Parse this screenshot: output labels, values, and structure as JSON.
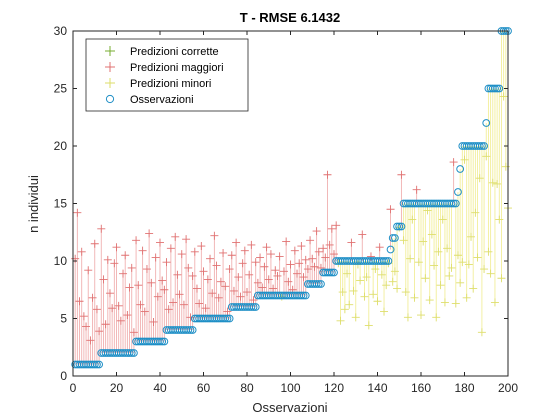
{
  "chart_data": {
    "type": "scatter",
    "title": "T - RMSE 6.1432",
    "xlabel": "Osservazioni",
    "ylabel": "n individui",
    "xlim": [
      0,
      200
    ],
    "ylim": [
      0,
      30
    ],
    "xticks": [
      "0",
      "20",
      "40",
      "60",
      "80",
      "100",
      "120",
      "140",
      "160",
      "180",
      "200"
    ],
    "yticks": [
      "0",
      "5",
      "10",
      "15",
      "20",
      "25",
      "30"
    ],
    "grid": false,
    "legend_position": "top-left",
    "legend": [
      {
        "label": "Predizioni corrette",
        "marker": "+",
        "color": "#77AC30"
      },
      {
        "label": "Predizioni maggiori",
        "marker": "+",
        "color": "#D95319"
      },
      {
        "label": "Predizioni minori",
        "marker": "+",
        "color": "#EDB120"
      },
      {
        "label": "Osservazioni",
        "marker": "o",
        "color": "#0072BD"
      }
    ],
    "colors": {
      "over_line": "#F0B0B0",
      "over_marker": "#E07070",
      "under_line": "#F2EE9A",
      "under_marker": "#DEDE6A",
      "correct_marker": "#77AC30",
      "observation": "#1F8FC6"
    },
    "observations": [
      1,
      1,
      1,
      1,
      1,
      1,
      1,
      1,
      1,
      1,
      1,
      1,
      2,
      2,
      2,
      2,
      2,
      2,
      2,
      2,
      2,
      2,
      2,
      2,
      2,
      2,
      2,
      2,
      3,
      3,
      3,
      3,
      3,
      3,
      3,
      3,
      3,
      3,
      3,
      3,
      3,
      3,
      4,
      4,
      4,
      4,
      4,
      4,
      4,
      4,
      4,
      4,
      4,
      4,
      4,
      5,
      5,
      5,
      5,
      5,
      5,
      5,
      5,
      5,
      5,
      5,
      5,
      5,
      5,
      5,
      5,
      5,
      6,
      6,
      6,
      6,
      6,
      6,
      6,
      6,
      6,
      6,
      6,
      6,
      7,
      7,
      7,
      7,
      7,
      7,
      7,
      7,
      7,
      7,
      7,
      7,
      7,
      7,
      7,
      7,
      7,
      7,
      7,
      7,
      7,
      7,
      7,
      8,
      8,
      8,
      8,
      8,
      8,
      8,
      9,
      9,
      9,
      9,
      9,
      9,
      10,
      10,
      10,
      10,
      10,
      10,
      10,
      10,
      10,
      10,
      10,
      10,
      10,
      10,
      10,
      10,
      10,
      10,
      10,
      10,
      10,
      10,
      10,
      10,
      10,
      11,
      12,
      12,
      13,
      13,
      13,
      15,
      15,
      15,
      15,
      15,
      15,
      15,
      15,
      15,
      15,
      15,
      15,
      15,
      15,
      15,
      15,
      15,
      15,
      15,
      15,
      15,
      15,
      15,
      15,
      15,
      16,
      18,
      20,
      20,
      20,
      20,
      20,
      20,
      20,
      20,
      20,
      20,
      20,
      22,
      25,
      25,
      25,
      25,
      25,
      25,
      30,
      30,
      30,
      30
    ],
    "predictions": [
      10.2,
      14.2,
      6.5,
      10.8,
      5.2,
      4.3,
      9.2,
      3.1,
      6.8,
      11.5,
      5.8,
      3.9,
      12.8,
      8.4,
      4.5,
      10.1,
      7.2,
      5.9,
      9.8,
      11.2,
      6.1,
      4.8,
      8.9,
      10.5,
      5.3,
      7.7,
      9.4,
      3.8,
      11.8,
      7.9,
      6.2,
      10.9,
      5.6,
      9.3,
      12.4,
      8.1,
      4.7,
      10.3,
      6.9,
      11.6,
      8.3,
      7.5,
      9.9,
      5.8,
      11.1,
      6.4,
      12.1,
      8.8,
      7.1,
      10.6,
      6.2,
      11.9,
      9.4,
      5.1,
      8.7,
      10.8,
      7.6,
      6.3,
      11.3,
      9.1,
      5.9,
      8.4,
      10.2,
      7.2,
      12.2,
      9.6,
      6.8,
      8.2,
      10.7,
      7.8,
      5.6,
      9.3,
      10.5,
      7.4,
      11.6,
      8.6,
      6.9,
      9.8,
      10.9,
      7.3,
      8.8,
      11.4,
      6.6,
      9.9,
      8.1,
      10.3,
      7.7,
      9.5,
      11.2,
      8.4,
      10.6,
      7.6,
      9.2,
      8.7,
      10.4,
      6.9,
      9.1,
      11.7,
      8.2,
      9.7,
      7.5,
      10.9,
      8.9,
      9.8,
      11.3,
      8.6,
      10.1,
      9.3,
      11.8,
      10.2,
      9.5,
      12.6,
      10.8,
      9.4,
      11.1,
      10.3,
      17.5,
      11.4,
      12.8,
      10.6,
      13.1,
      9.8,
      4.8,
      7.3,
      5.8,
      8.9,
      6.2,
      11.6,
      7.4,
      5.1,
      9.7,
      8.3,
      12.3,
      6.9,
      8.6,
      4.4,
      10.4,
      7.1,
      9.3,
      6.5,
      11.2,
      8.8,
      5.6,
      7.9,
      9.8,
      14.5,
      8.2,
      9.1,
      7.6,
      12.9,
      17.5,
      11.8,
      7.3,
      5.1,
      10.2,
      13.6,
      6.8,
      16.2,
      9.9,
      5.3,
      11.7,
      8.5,
      14.4,
      6.6,
      12.3,
      9.6,
      5.1,
      10.8,
      7.9,
      13.6,
      6.4,
      11.1,
      8.7,
      9.4,
      18.6,
      6.3,
      10.5,
      8.1,
      9.9,
      18.8,
      6.8,
      9.7,
      12.1,
      7.6,
      14.2,
      10.3,
      17.2,
      3.8,
      9.3,
      19.1,
      10.8,
      8.9,
      16.8,
      6.4,
      16.7,
      13.6,
      8.5,
      24.3,
      18.2,
      14.6
    ]
  }
}
